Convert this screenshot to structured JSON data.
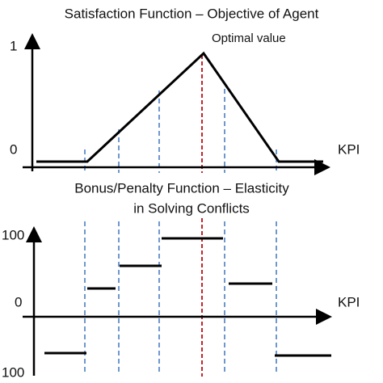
{
  "top": {
    "title": "Satisfaction Function – Objective of Agent",
    "y_high": "1",
    "y_low": "0",
    "annotation": "Optimal value",
    "x_label": "KPI"
  },
  "bottom": {
    "title_line1": "Bonus/Penalty Function – Elasticity",
    "title_line2": "in Solving Conflicts",
    "y_high": "100",
    "y_mid": "0",
    "y_low": "100",
    "x_label": "KPI"
  }
}
